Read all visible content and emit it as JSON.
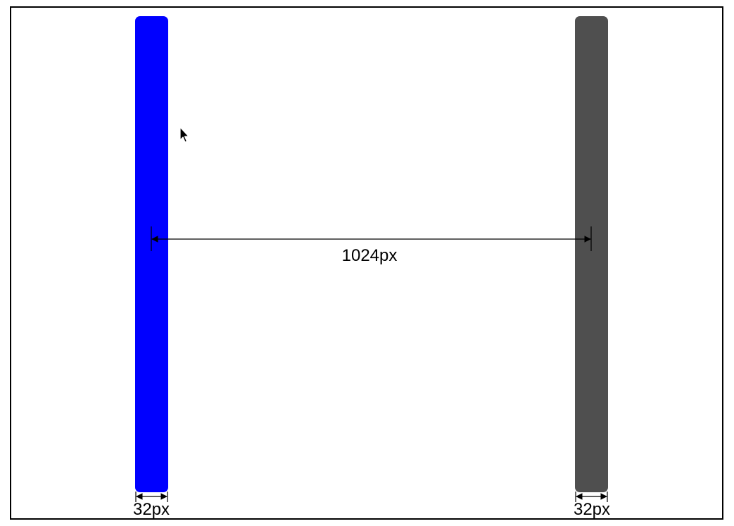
{
  "bars": {
    "left": {
      "color": "#0000ff"
    },
    "right": {
      "color": "#4f4f4f"
    }
  },
  "dimensions": {
    "gap_label": "1024px",
    "left_width_label": "32px",
    "right_width_label": "32px"
  },
  "cursor": {
    "icon": "mouse-pointer-icon"
  }
}
